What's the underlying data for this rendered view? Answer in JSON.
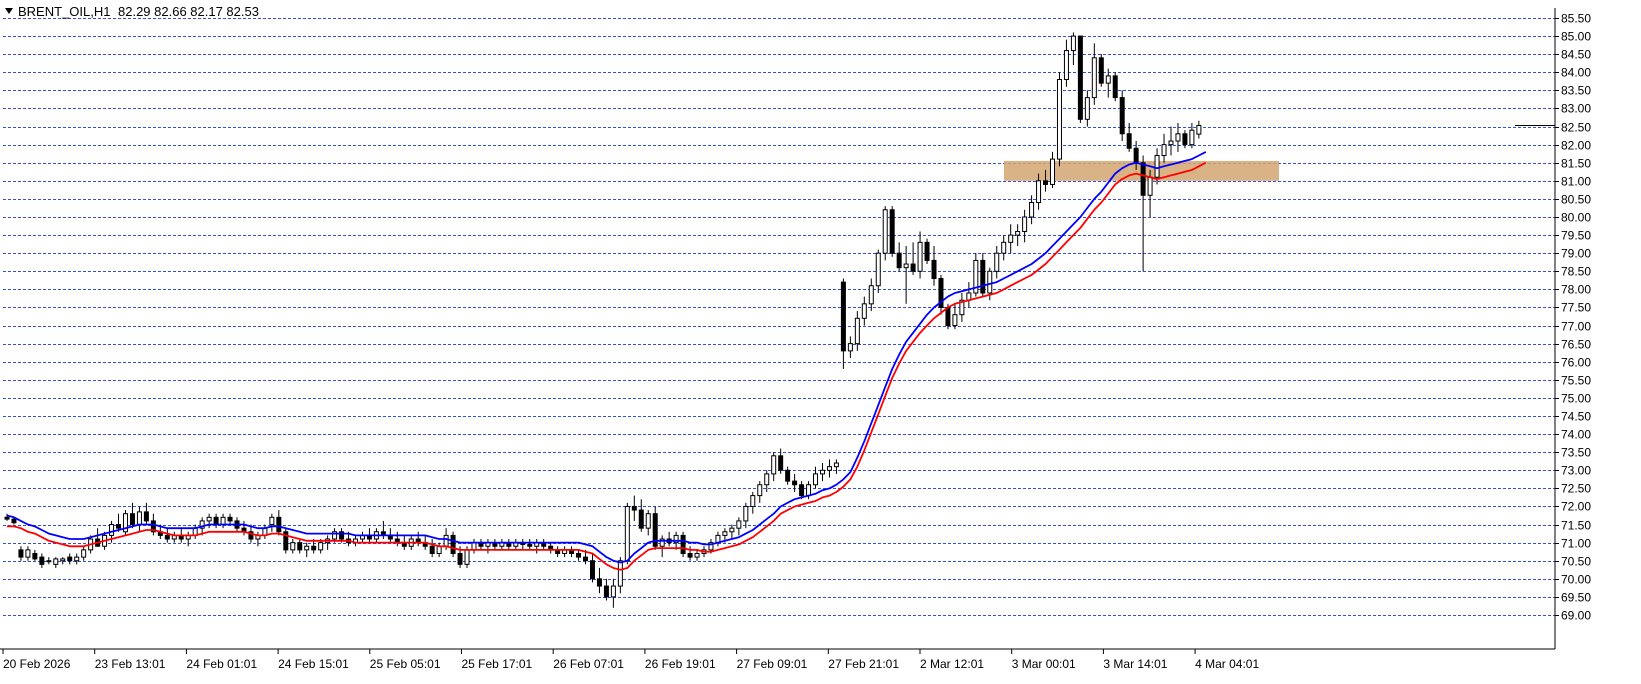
{
  "header": {
    "symbol_timeframe": "BRENT_OIL,H1",
    "ohlc": "82.29 82.66 82.17 82.53"
  },
  "colors": {
    "grid": "#3050d0",
    "candle_up": "#ffffff",
    "candle_down": "#000000",
    "ma_fast": "#0000ff",
    "ma_slow": "#ff0000",
    "zone": "#d2a670",
    "price_marker": "#000000"
  },
  "chart_data": {
    "type": "candlestick",
    "y_axis": {
      "range": [
        69.0,
        85.5
      ],
      "ticks": [
        "85.50",
        "85.00",
        "84.50",
        "84.00",
        "83.50",
        "83.00",
        "82.50",
        "82.00",
        "81.50",
        "81.00",
        "80.50",
        "80.00",
        "79.50",
        "79.00",
        "78.50",
        "78.00",
        "77.50",
        "77.00",
        "76.50",
        "76.00",
        "75.50",
        "75.00",
        "74.50",
        "74.00",
        "73.50",
        "73.00",
        "72.50",
        "72.00",
        "71.50",
        "71.00",
        "70.50",
        "70.00",
        "69.50",
        "69.00"
      ],
      "gridlines": "dashed at every tick",
      "position": "right"
    },
    "x_axis": {
      "tick_labels": [
        "20 Feb 2026",
        "23 Feb 13:01",
        "24 Feb 01:01",
        "24 Feb 15:01",
        "25 Feb 05:01",
        "25 Feb 17:01",
        "26 Feb 07:01",
        "26 Feb 19:01",
        "27 Feb 09:01",
        "27 Feb 21:01",
        "2 Mar 12:01",
        "3 Mar 00:01",
        "3 Mar 14:01",
        "4 Mar 04:01"
      ]
    },
    "current_price": 82.53,
    "support_zone": [
      81.0,
      81.55
    ],
    "ohlc": [
      [
        71.7,
        71.8,
        71.6,
        71.65
      ],
      [
        71.65,
        71.7,
        71.5,
        71.55
      ],
      [
        70.8,
        70.9,
        70.5,
        70.6
      ],
      [
        70.6,
        70.9,
        70.5,
        70.8
      ],
      [
        70.7,
        70.8,
        70.5,
        70.55
      ],
      [
        70.6,
        70.7,
        70.3,
        70.4
      ],
      [
        70.5,
        70.6,
        70.4,
        70.5
      ],
      [
        70.4,
        70.6,
        70.3,
        70.55
      ],
      [
        70.5,
        70.6,
        70.4,
        70.55
      ],
      [
        70.6,
        70.7,
        70.4,
        70.5
      ],
      [
        70.5,
        70.7,
        70.4,
        70.6
      ],
      [
        70.6,
        70.9,
        70.5,
        70.8
      ],
      [
        70.8,
        71.2,
        70.7,
        71.1
      ],
      [
        71.1,
        71.4,
        70.9,
        70.9
      ],
      [
        70.9,
        71.3,
        70.8,
        71.2
      ],
      [
        71.2,
        71.6,
        71.0,
        71.5
      ],
      [
        71.5,
        71.8,
        71.3,
        71.4
      ],
      [
        71.3,
        71.9,
        71.2,
        71.8
      ],
      [
        71.8,
        72.1,
        71.4,
        71.5
      ],
      [
        71.5,
        72.0,
        71.3,
        71.85
      ],
      [
        71.85,
        72.1,
        71.5,
        71.6
      ],
      [
        71.6,
        71.8,
        71.2,
        71.3
      ],
      [
        71.3,
        71.5,
        71.1,
        71.2
      ],
      [
        71.2,
        71.4,
        71.0,
        71.1
      ],
      [
        71.1,
        71.3,
        71.0,
        71.2
      ],
      [
        71.2,
        71.4,
        71.0,
        71.1
      ],
      [
        71.1,
        71.3,
        70.9,
        71.2
      ],
      [
        71.2,
        71.5,
        71.1,
        71.4
      ],
      [
        71.4,
        71.7,
        71.2,
        71.6
      ],
      [
        71.6,
        71.8,
        71.4,
        71.7
      ],
      [
        71.7,
        71.8,
        71.4,
        71.5
      ],
      [
        71.5,
        71.8,
        71.4,
        71.7
      ],
      [
        71.7,
        71.8,
        71.5,
        71.6
      ],
      [
        71.6,
        71.7,
        71.3,
        71.4
      ],
      [
        71.4,
        71.6,
        71.2,
        71.3
      ],
      [
        71.3,
        71.5,
        71.0,
        71.1
      ],
      [
        71.1,
        71.3,
        70.9,
        71.2
      ],
      [
        71.2,
        71.5,
        71.1,
        71.4
      ],
      [
        71.5,
        71.8,
        71.3,
        71.7
      ],
      [
        71.7,
        71.9,
        71.2,
        71.3
      ],
      [
        71.3,
        71.4,
        70.7,
        70.8
      ],
      [
        70.8,
        71.1,
        70.7,
        71.0
      ],
      [
        71.0,
        71.1,
        70.7,
        70.8
      ],
      [
        70.8,
        71.0,
        70.6,
        70.9
      ],
      [
        70.9,
        71.1,
        70.7,
        70.8
      ],
      [
        70.8,
        71.1,
        70.7,
        71.0
      ],
      [
        71.0,
        71.2,
        70.8,
        71.1
      ],
      [
        71.1,
        71.4,
        71.0,
        71.3
      ],
      [
        71.3,
        71.4,
        71.0,
        71.1
      ],
      [
        71.1,
        71.3,
        70.9,
        71.0
      ],
      [
        71.0,
        71.2,
        70.9,
        71.1
      ],
      [
        71.1,
        71.3,
        71.0,
        71.2
      ],
      [
        71.2,
        71.4,
        71.0,
        71.1
      ],
      [
        71.1,
        71.4,
        71.0,
        71.3
      ],
      [
        71.3,
        71.6,
        71.1,
        71.2
      ],
      [
        71.2,
        71.4,
        71.0,
        71.1
      ],
      [
        71.1,
        71.3,
        70.9,
        71.0
      ],
      [
        71.0,
        71.2,
        70.8,
        70.9
      ],
      [
        70.9,
        71.2,
        70.8,
        71.1
      ],
      [
        71.1,
        71.3,
        70.9,
        71.0
      ],
      [
        71.0,
        71.2,
        70.8,
        70.9
      ],
      [
        70.9,
        71.1,
        70.6,
        70.7
      ],
      [
        70.7,
        71.0,
        70.6,
        70.9
      ],
      [
        70.9,
        71.4,
        70.8,
        71.2
      ],
      [
        71.2,
        71.3,
        70.6,
        70.7
      ],
      [
        70.7,
        70.9,
        70.3,
        70.4
      ],
      [
        70.4,
        70.9,
        70.3,
        70.8
      ],
      [
        70.8,
        71.1,
        70.7,
        71.0
      ],
      [
        71.0,
        71.1,
        70.8,
        70.9
      ],
      [
        70.9,
        71.1,
        70.7,
        71.0
      ],
      [
        71.0,
        71.1,
        70.8,
        70.9
      ],
      [
        70.9,
        71.1,
        70.8,
        71.0
      ],
      [
        71.0,
        71.1,
        70.8,
        70.9
      ],
      [
        70.9,
        71.1,
        70.8,
        71.0
      ],
      [
        71.0,
        71.1,
        70.8,
        70.95
      ],
      [
        70.95,
        71.1,
        70.8,
        70.9
      ],
      [
        70.9,
        71.1,
        70.7,
        71.0
      ],
      [
        71.0,
        71.1,
        70.8,
        70.9
      ],
      [
        70.9,
        71.0,
        70.7,
        70.8
      ],
      [
        70.8,
        70.9,
        70.6,
        70.7
      ],
      [
        70.7,
        70.9,
        70.6,
        70.8
      ],
      [
        70.8,
        70.9,
        70.6,
        70.7
      ],
      [
        70.7,
        70.8,
        70.5,
        70.6
      ],
      [
        70.6,
        70.8,
        70.4,
        70.5
      ],
      [
        70.5,
        70.7,
        69.9,
        70.0
      ],
      [
        70.0,
        70.3,
        69.6,
        69.8
      ],
      [
        69.8,
        70.0,
        69.4,
        69.5
      ],
      [
        69.5,
        70.0,
        69.2,
        69.8
      ],
      [
        69.8,
        70.6,
        69.6,
        70.5
      ],
      [
        70.5,
        72.1,
        70.4,
        72.0
      ],
      [
        72.0,
        72.3,
        71.6,
        71.9
      ],
      [
        71.9,
        72.2,
        71.3,
        71.4
      ],
      [
        71.4,
        71.9,
        71.2,
        71.8
      ],
      [
        71.8,
        72.0,
        70.8,
        70.9
      ],
      [
        70.9,
        71.2,
        70.6,
        71.1
      ],
      [
        71.1,
        71.3,
        70.9,
        71.0
      ],
      [
        71.0,
        71.3,
        70.8,
        71.2
      ],
      [
        71.2,
        71.3,
        70.6,
        70.7
      ],
      [
        70.7,
        70.9,
        70.5,
        70.6
      ],
      [
        70.6,
        70.8,
        70.5,
        70.7
      ],
      [
        70.7,
        70.9,
        70.6,
        70.8
      ],
      [
        70.8,
        71.1,
        70.7,
        71.0
      ],
      [
        71.0,
        71.3,
        70.9,
        71.2
      ],
      [
        71.2,
        71.4,
        71.0,
        71.3
      ],
      [
        71.3,
        71.5,
        71.1,
        71.4
      ],
      [
        71.4,
        71.7,
        71.2,
        71.6
      ],
      [
        71.6,
        72.1,
        71.4,
        72.0
      ],
      [
        72.0,
        72.4,
        71.8,
        72.3
      ],
      [
        72.3,
        72.7,
        72.1,
        72.6
      ],
      [
        72.6,
        73.0,
        72.4,
        72.9
      ],
      [
        72.9,
        73.5,
        72.7,
        73.4
      ],
      [
        73.4,
        73.6,
        72.9,
        73.0
      ],
      [
        73.0,
        73.1,
        72.6,
        72.7
      ],
      [
        72.7,
        72.9,
        72.4,
        72.6
      ],
      [
        72.6,
        72.7,
        72.2,
        72.3
      ],
      [
        72.3,
        72.7,
        72.2,
        72.6
      ],
      [
        72.6,
        73.1,
        72.5,
        72.9
      ],
      [
        72.9,
        73.2,
        72.7,
        73.0
      ],
      [
        73.0,
        73.3,
        72.8,
        73.1
      ],
      [
        73.1,
        73.3,
        72.9,
        73.2
      ],
      [
        78.2,
        78.3,
        75.8,
        76.3
      ],
      [
        76.3,
        76.7,
        76.1,
        76.5
      ],
      [
        76.5,
        77.4,
        76.3,
        77.2
      ],
      [
        77.2,
        77.8,
        77.0,
        77.6
      ],
      [
        77.6,
        78.3,
        77.4,
        78.1
      ],
      [
        78.1,
        79.1,
        77.9,
        79.0
      ],
      [
        79.0,
        80.3,
        78.8,
        80.2
      ],
      [
        80.2,
        80.3,
        78.9,
        79.0
      ],
      [
        79.0,
        79.3,
        78.5,
        78.6
      ],
      [
        78.6,
        79.2,
        77.6,
        78.7
      ],
      [
        78.7,
        79.3,
        78.4,
        78.5
      ],
      [
        78.5,
        79.6,
        78.3,
        79.3
      ],
      [
        79.3,
        79.4,
        78.7,
        78.8
      ],
      [
        78.8,
        79.2,
        78.1,
        78.3
      ],
      [
        78.3,
        78.4,
        77.3,
        77.5
      ],
      [
        77.5,
        77.6,
        76.9,
        77.0
      ],
      [
        77.0,
        77.6,
        76.9,
        77.3
      ],
      [
        77.3,
        77.9,
        77.1,
        77.7
      ],
      [
        77.7,
        78.2,
        77.5,
        77.9
      ],
      [
        77.9,
        79.0,
        77.8,
        78.8
      ],
      [
        78.8,
        79.0,
        77.8,
        77.9
      ],
      [
        77.9,
        78.6,
        77.7,
        78.5
      ],
      [
        78.5,
        79.2,
        78.3,
        79.0
      ],
      [
        79.0,
        79.5,
        78.8,
        79.3
      ],
      [
        79.3,
        79.8,
        79.0,
        79.5
      ],
      [
        79.5,
        79.8,
        79.2,
        79.6
      ],
      [
        79.6,
        80.2,
        79.3,
        80.0
      ],
      [
        80.0,
        80.6,
        79.8,
        80.4
      ],
      [
        80.4,
        81.2,
        80.2,
        81.0
      ],
      [
        81.0,
        81.3,
        80.7,
        80.9
      ],
      [
        80.9,
        81.8,
        80.8,
        81.6
      ],
      [
        81.6,
        84.0,
        81.4,
        83.8
      ],
      [
        83.8,
        84.9,
        83.6,
        84.6
      ],
      [
        84.6,
        85.1,
        84.2,
        85.0
      ],
      [
        85.0,
        85.0,
        82.6,
        82.7
      ],
      [
        82.7,
        83.5,
        82.5,
        83.3
      ],
      [
        83.3,
        84.8,
        83.1,
        84.4
      ],
      [
        84.4,
        84.5,
        83.6,
        83.7
      ],
      [
        83.7,
        84.1,
        83.3,
        83.9
      ],
      [
        83.9,
        84.0,
        83.2,
        83.3
      ],
      [
        83.3,
        83.5,
        82.1,
        82.3
      ],
      [
        82.3,
        82.6,
        81.8,
        81.9
      ],
      [
        81.9,
        82.1,
        81.3,
        81.5
      ],
      [
        81.5,
        81.7,
        78.5,
        80.6
      ],
      [
        80.6,
        81.3,
        80.0,
        81.1
      ],
      [
        81.1,
        81.9,
        80.9,
        81.7
      ],
      [
        81.7,
        82.3,
        81.5,
        82.0
      ],
      [
        82.0,
        82.5,
        81.7,
        82.1
      ],
      [
        82.1,
        82.6,
        81.8,
        82.3
      ],
      [
        82.3,
        82.4,
        81.9,
        82.0
      ],
      [
        82.0,
        82.6,
        81.9,
        82.4
      ],
      [
        82.29,
        82.66,
        82.17,
        82.53
      ]
    ],
    "series": [
      {
        "name": "",
        "color": "#0000ff",
        "values": [
          71.75,
          71.7,
          71.6,
          71.5,
          71.45,
          71.35,
          71.25,
          71.2,
          71.15,
          71.1,
          71.1,
          71.1,
          71.15,
          71.2,
          71.25,
          71.3,
          71.35,
          71.4,
          71.45,
          71.5,
          71.5,
          71.5,
          71.45,
          71.4,
          71.4,
          71.4,
          71.4,
          71.4,
          71.45,
          71.5,
          71.5,
          71.5,
          71.5,
          71.5,
          71.5,
          71.45,
          71.4,
          71.4,
          71.45,
          71.45,
          71.4,
          71.35,
          71.3,
          71.25,
          71.25,
          71.25,
          71.25,
          71.25,
          71.25,
          71.25,
          71.2,
          71.2,
          71.2,
          71.2,
          71.2,
          71.2,
          71.2,
          71.2,
          71.2,
          71.2,
          71.2,
          71.15,
          71.1,
          71.1,
          71.05,
          71.0,
          71.0,
          71.0,
          71.0,
          71.0,
          71.0,
          71.0,
          71.0,
          71.0,
          71.0,
          71.0,
          71.0,
          71.0,
          71.0,
          71.0,
          71.0,
          71.0,
          71.0,
          70.95,
          70.9,
          70.75,
          70.6,
          70.5,
          70.45,
          70.5,
          70.7,
          70.85,
          71.0,
          71.05,
          71.05,
          71.05,
          71.05,
          71.05,
          71.0,
          71.0,
          70.95,
          70.95,
          71.0,
          71.05,
          71.1,
          71.15,
          71.25,
          71.35,
          71.5,
          71.65,
          71.8,
          72.0,
          72.1,
          72.2,
          72.25,
          72.3,
          72.35,
          72.45,
          72.5,
          72.6,
          72.75,
          72.95,
          73.35,
          73.8,
          74.3,
          74.8,
          75.3,
          75.8,
          76.2,
          76.55,
          76.8,
          77.05,
          77.3,
          77.5,
          77.65,
          77.8,
          77.9,
          77.95,
          78.0,
          78.05,
          78.1,
          78.15,
          78.2,
          78.3,
          78.4,
          78.5,
          78.6,
          78.7,
          78.85,
          79.0,
          79.2,
          79.4,
          79.6,
          79.8,
          80.0,
          80.25,
          80.5,
          80.7,
          80.95,
          81.2,
          81.35,
          81.45,
          81.5,
          81.45,
          81.4,
          81.35,
          81.4,
          81.45,
          81.5,
          81.55,
          81.6,
          81.7,
          81.8
        ]
      },
      {
        "name": "",
        "color": "#ff0000",
        "values": [
          71.45,
          71.45,
          71.4,
          71.3,
          71.25,
          71.15,
          71.05,
          71.0,
          70.95,
          70.9,
          70.9,
          70.9,
          70.95,
          71.0,
          71.05,
          71.1,
          71.15,
          71.2,
          71.25,
          71.3,
          71.35,
          71.35,
          71.3,
          71.25,
          71.2,
          71.2,
          71.2,
          71.2,
          71.25,
          71.3,
          71.3,
          71.3,
          71.3,
          71.3,
          71.3,
          71.25,
          71.2,
          71.2,
          71.25,
          71.25,
          71.2,
          71.15,
          71.1,
          71.05,
          71.05,
          71.05,
          71.05,
          71.05,
          71.05,
          71.05,
          71.0,
          71.0,
          71.0,
          71.0,
          71.0,
          71.0,
          71.0,
          71.0,
          71.0,
          71.0,
          71.0,
          70.95,
          70.9,
          70.9,
          70.85,
          70.8,
          70.8,
          70.8,
          70.8,
          70.8,
          70.8,
          70.8,
          70.8,
          70.8,
          70.8,
          70.8,
          70.8,
          70.8,
          70.8,
          70.8,
          70.8,
          70.8,
          70.8,
          70.75,
          70.7,
          70.55,
          70.4,
          70.3,
          70.25,
          70.3,
          70.5,
          70.65,
          70.8,
          70.85,
          70.85,
          70.85,
          70.85,
          70.85,
          70.8,
          70.8,
          70.75,
          70.75,
          70.8,
          70.85,
          70.9,
          70.95,
          71.05,
          71.15,
          71.3,
          71.45,
          71.6,
          71.8,
          71.9,
          72.0,
          72.05,
          72.1,
          72.15,
          72.25,
          72.3,
          72.4,
          72.55,
          72.75,
          73.1,
          73.55,
          74.05,
          74.55,
          75.05,
          75.55,
          75.95,
          76.3,
          76.55,
          76.8,
          77.0,
          77.2,
          77.35,
          77.5,
          77.6,
          77.65,
          77.7,
          77.75,
          77.8,
          77.85,
          77.9,
          78.0,
          78.1,
          78.2,
          78.3,
          78.4,
          78.55,
          78.7,
          78.9,
          79.1,
          79.3,
          79.5,
          79.7,
          79.95,
          80.2,
          80.4,
          80.65,
          80.9,
          81.05,
          81.15,
          81.2,
          81.15,
          81.1,
          81.05,
          81.1,
          81.15,
          81.2,
          81.25,
          81.3,
          81.4,
          81.5
        ]
      }
    ]
  }
}
